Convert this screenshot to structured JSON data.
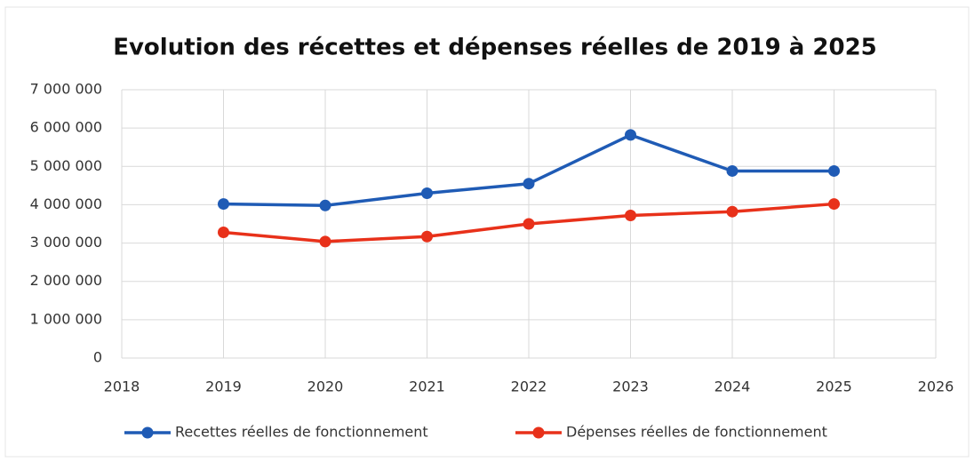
{
  "chart_data": {
    "type": "line",
    "title": "Evolution des récettes et dépenses réelles de 2019 à 2025",
    "x": [
      2019,
      2020,
      2021,
      2022,
      2023,
      2024,
      2025
    ],
    "series": [
      {
        "name": "Recettes réelles de fonctionnement",
        "color": "#1f5bb5",
        "values": [
          4020000,
          3980000,
          4300000,
          4550000,
          5820000,
          4880000,
          4880000
        ]
      },
      {
        "name": "Dépenses réelles de fonctionnement",
        "color": "#e8311a",
        "values": [
          3280000,
          3040000,
          3170000,
          3500000,
          3720000,
          3820000,
          4020000
        ]
      }
    ],
    "xlim": [
      2018,
      2026
    ],
    "xticks": [
      2018,
      2019,
      2020,
      2021,
      2022,
      2023,
      2024,
      2025,
      2026
    ],
    "ylim": [
      0,
      7000000
    ],
    "yticks": [
      0,
      {
        "value": 1000000,
        "label": "1 000 000"
      },
      {
        "value": 2000000,
        "label": "2 000 000"
      },
      {
        "value": 3000000,
        "label": "3 000 000"
      },
      {
        "value": 4000000,
        "label": "4 000 000"
      },
      {
        "value": 5000000,
        "label": "5 000 000"
      },
      {
        "value": 6000000,
        "label": "6 000 000"
      },
      {
        "value": 7000000,
        "label": "7 000 000"
      }
    ],
    "grid": true,
    "legend": "bottom"
  }
}
